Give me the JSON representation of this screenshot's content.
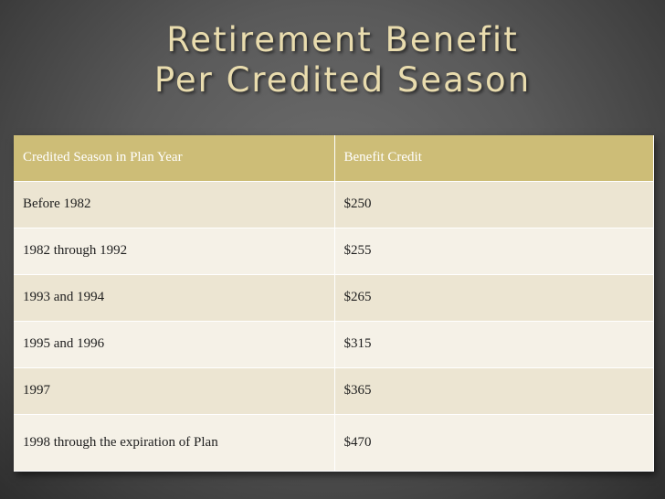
{
  "slide": {
    "title_line1": "Retirement Benefit",
    "title_line2": "Per Credited Season"
  },
  "table": {
    "headers": [
      "Credited Season in Plan Year",
      "Benefit Credit"
    ],
    "rows": [
      [
        "Before 1982",
        "$250"
      ],
      [
        "1982 through 1992",
        "$255"
      ],
      [
        "1993 and 1994",
        "$265"
      ],
      [
        "1995 and 1996",
        "$315"
      ],
      [
        "1997",
        "$365"
      ],
      [
        "1998 through the expiration of Plan",
        "$470"
      ]
    ]
  },
  "colors": {
    "header_bg": "#cdbd77",
    "row_odd_bg": "#ece5d2",
    "row_even_bg": "#f5f1e7",
    "title_color": "#e9dcae"
  }
}
